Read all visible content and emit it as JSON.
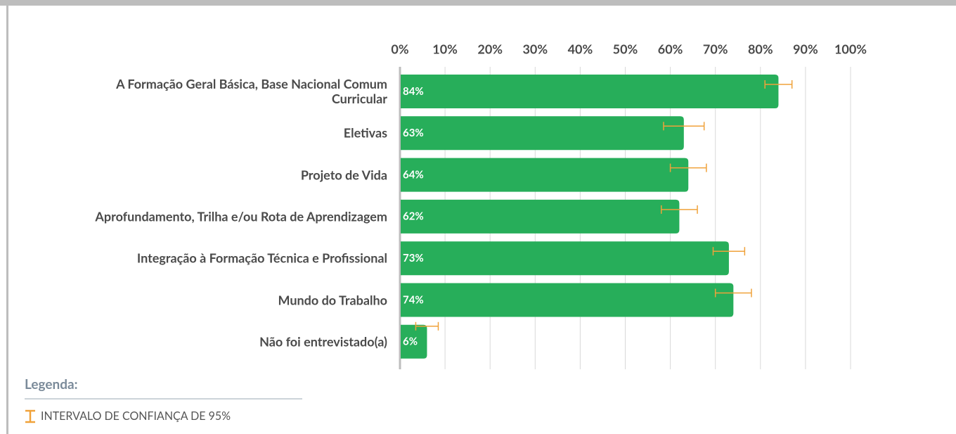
{
  "chart_data": {
    "type": "hbar",
    "categories": [
      "A Formação Geral Básica, Base Nacional Comum Curricular",
      "Eletivas",
      "Projeto de Vida",
      "Aprofundamento, Trilha e/ou Rota de Aprendizagem",
      "Integração à Formação Técnica e Profissional",
      "Mundo do Trabalho",
      "Não foi entrevistado(a)"
    ],
    "values": [
      84,
      63,
      64,
      62,
      73,
      74,
      6
    ],
    "value_labels": [
      "84%",
      "63%",
      "64%",
      "62%",
      "73%",
      "74%",
      "6%"
    ],
    "errors": [
      3,
      4.5,
      4,
      4,
      3.5,
      4,
      2.5
    ],
    "color": "#27ae5a",
    "error_color": "#f0a23a",
    "xlim": [
      0,
      100
    ],
    "xticks": [
      {
        "value": 0,
        "label": "0%"
      },
      {
        "value": 10,
        "label": "10%"
      },
      {
        "value": 20,
        "label": "20%"
      },
      {
        "value": 30,
        "label": "30%"
      },
      {
        "value": 40,
        "label": "40%"
      },
      {
        "value": 50,
        "label": "50%"
      },
      {
        "value": 60,
        "label": "60%"
      },
      {
        "value": 70,
        "label": "70%"
      },
      {
        "value": 80,
        "label": "80%"
      },
      {
        "value": 90,
        "label": "90%"
      },
      {
        "value": 100,
        "label": "100%"
      }
    ],
    "grid": true,
    "legend": {
      "title": "Legenda:",
      "label": "INTERVALO DE CONFIANÇA DE 95%"
    }
  }
}
